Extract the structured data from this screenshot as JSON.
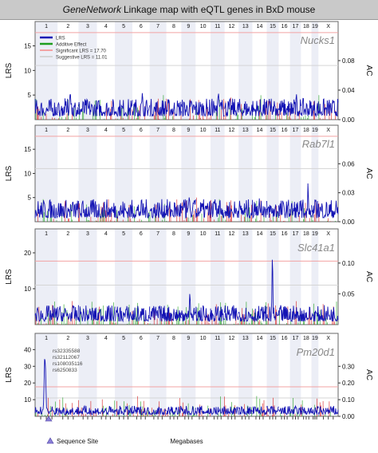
{
  "title_prefix": "GeneNetwork",
  "title_rest": "Linkage map with eQTL genes in BxD mouse",
  "chromosomes": [
    "1",
    "2",
    "3",
    "4",
    "5",
    "6",
    "7",
    "8",
    "9",
    "10",
    "11",
    "12",
    "13",
    "14",
    "15",
    "16",
    "17",
    "18",
    "19",
    "X"
  ],
  "legend": {
    "items": [
      {
        "label": "LRS",
        "color": "#1414b4"
      },
      {
        "label": "Additive Effect",
        "color": "#1e9e1e"
      },
      {
        "label": "Significant LRS = 17.70",
        "color": "#f2a3a3"
      },
      {
        "label": "Suggestive LRS = 11.01",
        "color": "#d5d5d5"
      }
    ]
  },
  "footer": {
    "sequence_site": "Sequence Site",
    "xlabel": "Megabases"
  },
  "colors": {
    "lrs": "#1414b4",
    "additive": "#1e9e1e",
    "red_effect": "#d81e1e",
    "significant": "#f2a3a3",
    "suggestive": "#d5d5d5",
    "band": "#eceef6"
  },
  "chart_data": [
    {
      "type": "line",
      "gene": "Nucks1",
      "ylabel": "LRS",
      "y2label": "AC",
      "y_ticks": [
        "15",
        "10",
        "5"
      ],
      "y_tick_values": [
        15,
        10,
        5
      ],
      "ylim": [
        0,
        18
      ],
      "y2_ticks": [
        "0.08",
        "0.04",
        "0.00"
      ],
      "y2_tick_values": [
        0.08,
        0.04,
        0.0
      ],
      "y2lim": [
        0,
        0.12
      ],
      "significant_lrs": 17.7,
      "suggestive_lrs": 11.01,
      "peaks": [
        {
          "chr": "2",
          "lrs": 6
        },
        {
          "chr": "6",
          "lrs": 6
        },
        {
          "chr": "11",
          "lrs": 6
        },
        {
          "chr": "15",
          "lrs": 4.5
        },
        {
          "chr": "17",
          "lrs": 6.5
        }
      ],
      "base_lrs": 2.4
    },
    {
      "type": "line",
      "gene": "Rab7l1",
      "ylabel": "LRS",
      "y2label": "AC",
      "y_ticks": [
        "15",
        "10",
        "5"
      ],
      "y_tick_values": [
        15,
        10,
        5
      ],
      "ylim": [
        0,
        18
      ],
      "y2_ticks": [
        "0.06",
        "0.03",
        "0.00"
      ],
      "y2_tick_values": [
        0.06,
        0.03,
        0.0
      ],
      "y2lim": [
        0,
        0.09
      ],
      "significant_lrs": 17.7,
      "suggestive_lrs": 11.01,
      "peaks": [
        {
          "chr": "9",
          "lrs": 6
        },
        {
          "chr": "11",
          "lrs": 5.5
        },
        {
          "chr": "14",
          "lrs": 5
        },
        {
          "chr": "18",
          "lrs": 9.5
        }
      ],
      "base_lrs": 2.6
    },
    {
      "type": "line",
      "gene": "Slc41a1",
      "ylabel": "LRS",
      "y2label": "AC",
      "y_ticks": [
        "20",
        "10"
      ],
      "y_tick_values": [
        20,
        10
      ],
      "ylim": [
        0,
        24
      ],
      "y2_ticks": [
        "0.10",
        "0.05"
      ],
      "y2_tick_values": [
        0.1,
        0.05
      ],
      "y2lim": [
        0,
        0.14
      ],
      "significant_lrs": 17.7,
      "suggestive_lrs": 11.01,
      "peaks": [
        {
          "chr": "9",
          "lrs": 10
        },
        {
          "chr": "15",
          "lrs": 22
        }
      ],
      "base_lrs": 3.0
    },
    {
      "type": "line",
      "gene": "Pm20d1",
      "ylabel": "LRS",
      "y2label": "AC",
      "y_ticks": [
        "40",
        "30",
        "20",
        "10"
      ],
      "y_tick_values": [
        40,
        30,
        20,
        10
      ],
      "ylim": [
        0,
        44
      ],
      "y2_ticks": [
        "0.30",
        "0.20",
        "0.10",
        "0.00"
      ],
      "y2_tick_values": [
        0.3,
        0.2,
        0.1,
        0.0
      ],
      "y2lim": [
        0,
        0.44
      ],
      "significant_lrs": 17.7,
      "suggestive_lrs": 11.01,
      "peaks": [
        {
          "chr": "1",
          "lrs": 39
        }
      ],
      "base_lrs": 3.5,
      "snps": [
        "rs32335588",
        "rs32112067",
        "rs108035116",
        "rs6250833"
      ]
    }
  ]
}
